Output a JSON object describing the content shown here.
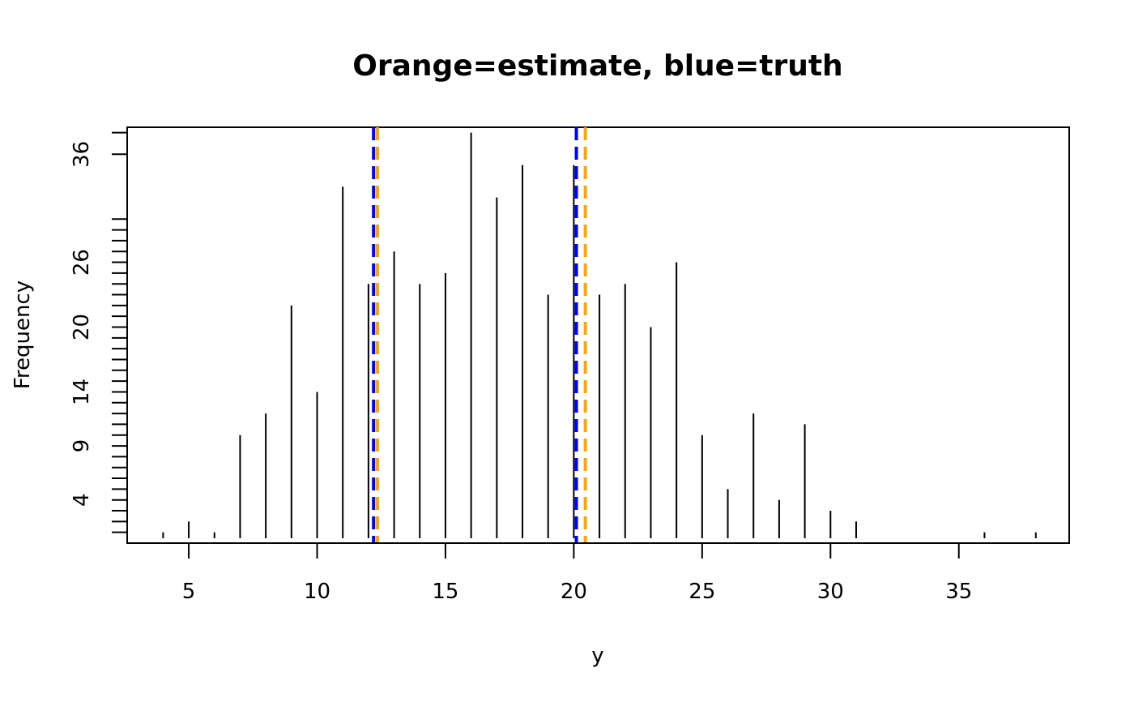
{
  "chart_data": {
    "type": "bar",
    "title": "Orange=estimate, blue=truth",
    "xlabel": "y",
    "ylabel": "Frequency",
    "xlim": [
      2.6,
      39.3
    ],
    "ylim": [
      0,
      38.5
    ],
    "x_ticks": [
      5,
      10,
      15,
      20,
      25,
      30,
      35
    ],
    "y_ticks": [
      4,
      9,
      14,
      20,
      26,
      36
    ],
    "y_minor_ticks": [
      1,
      2,
      3,
      4,
      5,
      6,
      7,
      8,
      9,
      10,
      11,
      12,
      13,
      14,
      15,
      16,
      17,
      18,
      19,
      20,
      21,
      22,
      23,
      24,
      25,
      26,
      27,
      28,
      29,
      30,
      36,
      38
    ],
    "x": [
      4,
      5,
      6,
      7,
      8,
      9,
      10,
      11,
      12,
      13,
      14,
      15,
      16,
      17,
      18,
      19,
      20,
      21,
      22,
      23,
      24,
      25,
      26,
      27,
      28,
      29,
      30,
      31,
      36,
      38
    ],
    "values": [
      1,
      2,
      1,
      10,
      12,
      22,
      14,
      33,
      24,
      27,
      24,
      25,
      38,
      32,
      35,
      23,
      35,
      23,
      24,
      20,
      26,
      10,
      5,
      12,
      4,
      11,
      3,
      2,
      1,
      1
    ],
    "reference_lines": [
      {
        "name": "estimate",
        "color": "#FFA500",
        "x": [
          12.35,
          20.45
        ]
      },
      {
        "name": "truth",
        "color": "#0000FF",
        "x": [
          12.2,
          20.1
        ]
      }
    ],
    "grid": false,
    "legend": "none"
  }
}
